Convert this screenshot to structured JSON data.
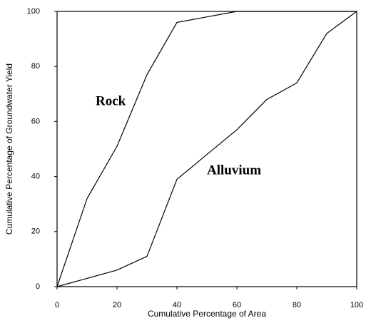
{
  "chart_data": {
    "type": "line",
    "xlabel": "Cumulative Percentage of Area",
    "ylabel": "Cumulative Percentage of Groundwater Yield",
    "x": [
      0,
      10,
      20,
      30,
      40,
      50,
      60,
      70,
      80,
      90,
      100
    ],
    "series": [
      {
        "name": "Rock",
        "color": "#000000",
        "values": [
          0,
          32,
          51,
          77,
          96,
          98,
          100,
          100,
          100,
          100,
          100
        ]
      },
      {
        "name": "Alluvium",
        "color": "#000000",
        "values": [
          0,
          3,
          6,
          11,
          39,
          48,
          57,
          68,
          74,
          92,
          100
        ]
      }
    ],
    "xlim": [
      0,
      100
    ],
    "xticks": [
      0,
      20,
      40,
      60,
      80,
      100
    ],
    "ylim": [
      0,
      100
    ],
    "yticks": [
      0,
      20,
      40,
      60,
      80,
      100
    ],
    "grid": false
  }
}
